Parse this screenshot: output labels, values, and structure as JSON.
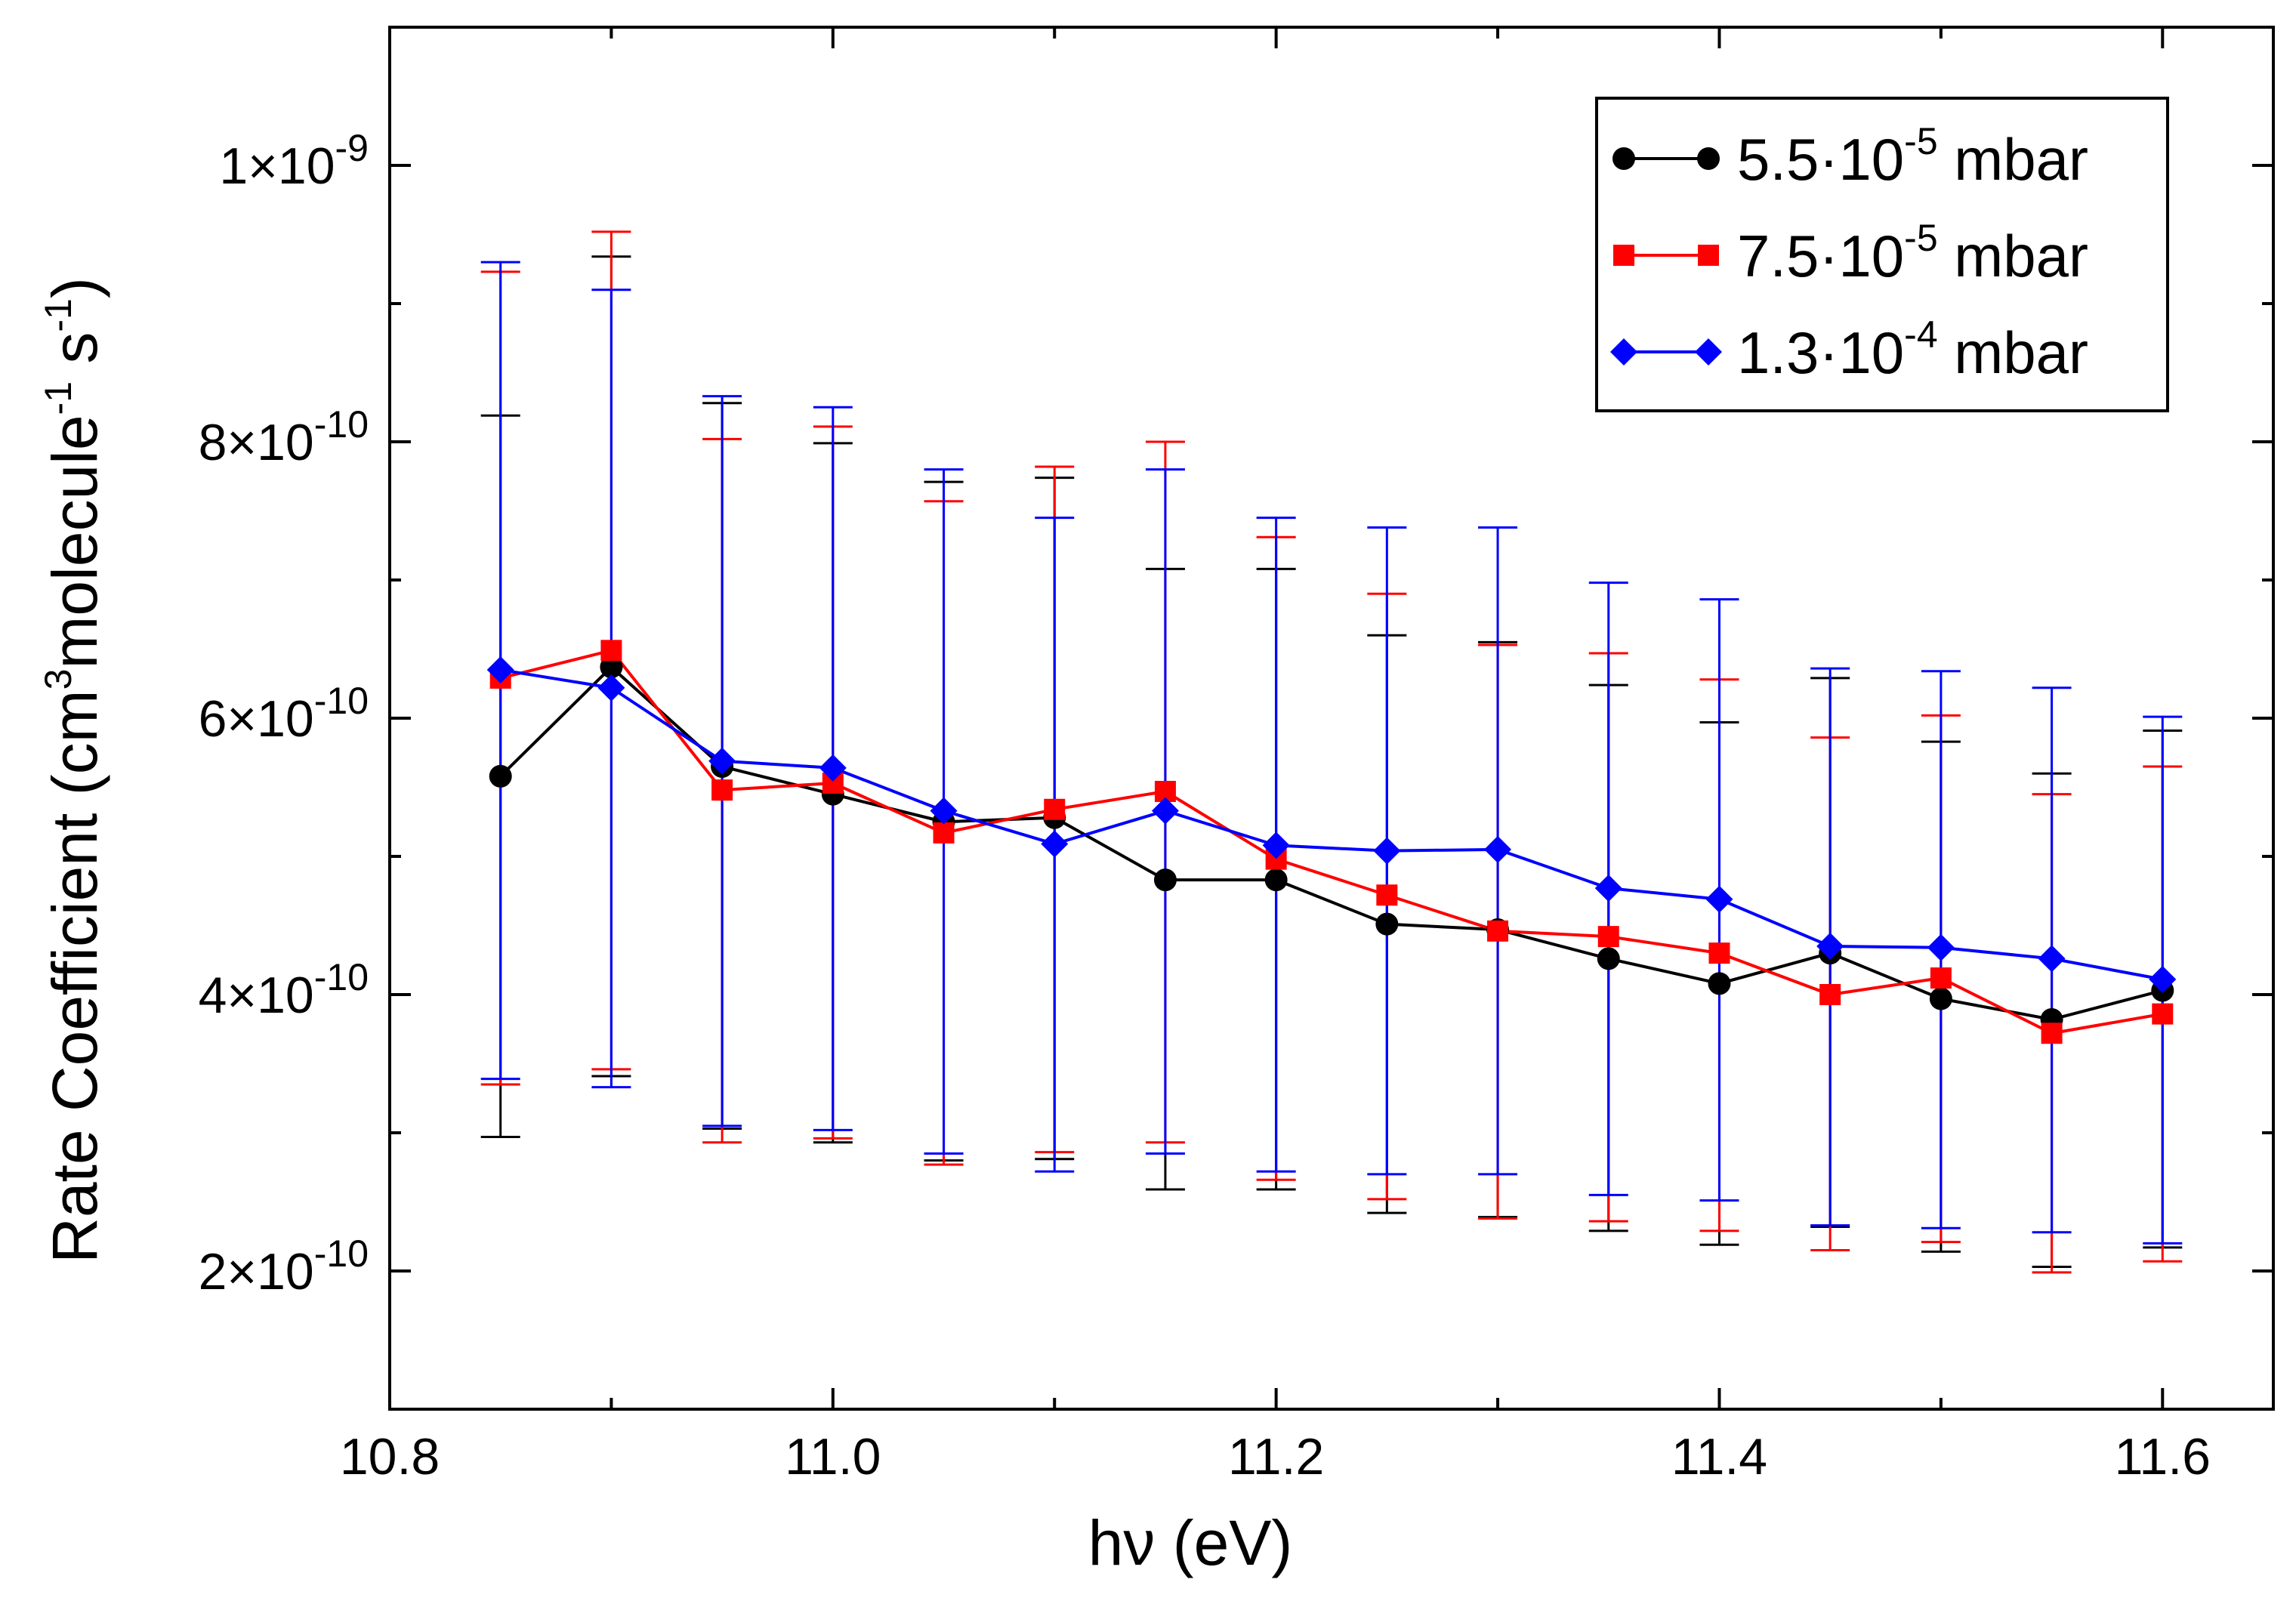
{
  "chart_data": {
    "type": "line",
    "title": "",
    "xlabel": "hν (eV)",
    "ylabel": {
      "base": "Rate Coefficient (cm",
      "exp1": "3",
      "mid": "molecule",
      "exp2": "-1",
      "sep": " s",
      "exp3": "-1",
      "end": ")"
    },
    "xlim": [
      10.8,
      11.65
    ],
    "ylim": [
      1e-10,
      1.1e-09
    ],
    "x_ticks": [
      10.8,
      11.0,
      11.2,
      11.4,
      11.6
    ],
    "x_tick_labels": [
      "10.8",
      "11.0",
      "11.2",
      "11.4",
      "11.6"
    ],
    "x_minor_ticks": [
      10.9,
      11.1,
      11.3,
      11.5
    ],
    "y_ticks": [
      2e-10,
      4e-10,
      6e-10,
      8e-10,
      1e-09
    ],
    "y_tick_labels": [
      {
        "mant": "2×10",
        "exp": "-10"
      },
      {
        "mant": "4×10",
        "exp": "-10"
      },
      {
        "mant": "6×10",
        "exp": "-10"
      },
      {
        "mant": "8×10",
        "exp": "-10"
      },
      {
        "mant": "1×10",
        "exp": "-9"
      }
    ],
    "y_minor_ticks": [
      3e-10,
      5e-10,
      7e-10,
      9e-10
    ],
    "grid": false,
    "legend_position": "top-right",
    "x": [
      10.85,
      10.9,
      10.95,
      11.0,
      11.05,
      11.1,
      11.15,
      11.2,
      11.25,
      11.3,
      11.35,
      11.4,
      11.45,
      11.5,
      11.55,
      11.6
    ],
    "series": [
      {
        "name": "5.5·10-5 mbar",
        "legend": {
          "pre": "5.5·10",
          "exp": "-5",
          "post": " mbar"
        },
        "color": "#000000",
        "marker": "circle",
        "values": [
          5.58e-10,
          6.37e-10,
          5.65e-10,
          5.45e-10,
          5.25e-10,
          5.28e-10,
          4.83e-10,
          4.83e-10,
          4.51e-10,
          4.47e-10,
          4.26e-10,
          4.08e-10,
          4.3e-10,
          3.97e-10,
          3.82e-10,
          4.03e-10
        ],
        "err_low": [
          2.97e-10,
          3.41e-10,
          3.03e-10,
          2.93e-10,
          2.8e-10,
          2.81e-10,
          2.59e-10,
          2.59e-10,
          2.42e-10,
          2.39e-10,
          2.29e-10,
          2.19e-10,
          2.32e-10,
          2.14e-10,
          2.03e-10,
          2.17e-10
        ],
        "err_high": [
          8.19e-10,
          9.34e-10,
          8.28e-10,
          7.99e-10,
          7.71e-10,
          7.74e-10,
          7.08e-10,
          7.08e-10,
          6.6e-10,
          6.55e-10,
          6.24e-10,
          5.97e-10,
          6.29e-10,
          5.83e-10,
          5.6e-10,
          5.91e-10
        ]
      },
      {
        "name": "7.5·10-5 mbar",
        "legend": {
          "pre": "7.5·10",
          "exp": "-5",
          "post": " mbar"
        },
        "color": "#ff0000",
        "marker": "square",
        "values": [
          6.29e-10,
          6.49e-10,
          5.48e-10,
          5.53e-10,
          5.17e-10,
          5.34e-10,
          5.47e-10,
          4.98e-10,
          4.72e-10,
          4.46e-10,
          4.42e-10,
          4.3e-10,
          4e-10,
          4.12e-10,
          3.72e-10,
          3.86e-10
        ],
        "err_low": [
          3.35e-10,
          3.46e-10,
          2.93e-10,
          2.96e-10,
          2.77e-10,
          2.86e-10,
          2.93e-10,
          2.66e-10,
          2.52e-10,
          2.38e-10,
          2.36e-10,
          2.29e-10,
          2.15e-10,
          2.21e-10,
          1.99e-10,
          2.07e-10
        ],
        "err_high": [
          9.23e-10,
          9.52e-10,
          8.02e-10,
          8.11e-10,
          7.57e-10,
          7.82e-10,
          8e-10,
          7.31e-10,
          6.9e-10,
          6.53e-10,
          6.47e-10,
          6.28e-10,
          5.86e-10,
          6.02e-10,
          5.45e-10,
          5.65e-10
        ]
      },
      {
        "name": "1.3·10-4 mbar",
        "legend": {
          "pre": "1.3·10",
          "exp": "-4",
          "post": " mbar"
        },
        "color": "#0000ff",
        "marker": "diamond",
        "values": [
          6.35e-10,
          6.22e-10,
          5.69e-10,
          5.64e-10,
          5.33e-10,
          5.09e-10,
          5.33e-10,
          5.08e-10,
          5.04e-10,
          5.05e-10,
          4.77e-10,
          4.69e-10,
          4.35e-10,
          4.34e-10,
          4.26e-10,
          4.11e-10
        ],
        "err_low": [
          3.39e-10,
          3.33e-10,
          3.05e-10,
          3.02e-10,
          2.85e-10,
          2.72e-10,
          2.85e-10,
          2.72e-10,
          2.7e-10,
          2.7e-10,
          2.55e-10,
          2.51e-10,
          2.33e-10,
          2.31e-10,
          2.28e-10,
          2.2e-10
        ],
        "err_high": [
          9.3e-10,
          9.1e-10,
          8.33e-10,
          8.25e-10,
          7.8e-10,
          7.45e-10,
          7.8e-10,
          7.45e-10,
          7.38e-10,
          7.38e-10,
          6.98e-10,
          6.86e-10,
          6.36e-10,
          6.34e-10,
          6.22e-10,
          6.01e-10
        ]
      }
    ]
  }
}
